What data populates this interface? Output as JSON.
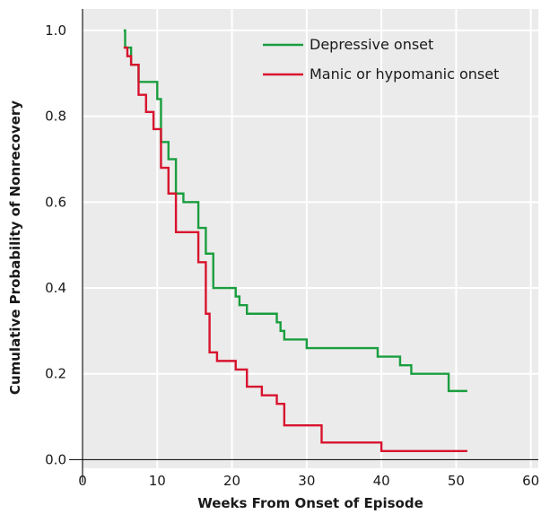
{
  "chart_data": {
    "type": "line",
    "title": "",
    "xlabel": "Weeks From Onset of Episode",
    "ylabel": "Cumulative Probability of Nonrecovery",
    "xlim": [
      0,
      61
    ],
    "ylim": [
      -0.02,
      1.05
    ],
    "x_ticks": [
      0,
      10,
      20,
      30,
      40,
      50,
      60
    ],
    "x_tick_labels": [
      "0",
      "10",
      "20",
      "30",
      "40",
      "50",
      "60"
    ],
    "y_ticks": [
      0.0,
      0.2,
      0.4,
      0.6,
      0.8,
      1.0
    ],
    "y_tick_labels": [
      "0.0",
      "0.2",
      "0.4",
      "0.6",
      "0.8",
      "1.0"
    ],
    "grid": true,
    "background": "#ebebeb",
    "grid_color": "#ffffff",
    "legend_position": "top-right",
    "step": true,
    "series": [
      {
        "name": "Depressive onset",
        "color": "#1a9e3f",
        "x": [
          5.5,
          5.7,
          6.5,
          7.5,
          10,
          10.5,
          11.5,
          12.5,
          13.5,
          15.5,
          16.5,
          17.5,
          20.5,
          21,
          22,
          24,
          26,
          26.5,
          27,
          30,
          39.5,
          42.5,
          44,
          49,
          51.5
        ],
        "y": [
          1.0,
          0.96,
          0.92,
          0.88,
          0.84,
          0.74,
          0.7,
          0.62,
          0.6,
          0.54,
          0.48,
          0.4,
          0.38,
          0.36,
          0.34,
          0.34,
          0.32,
          0.3,
          0.28,
          0.26,
          0.24,
          0.22,
          0.2,
          0.16,
          0.16
        ]
      },
      {
        "name": "Manic or hypomanic onset",
        "color": "#d8132e",
        "x": [
          5.5,
          6,
          6.5,
          7.5,
          8.5,
          9.5,
          10.5,
          11.5,
          12.5,
          15.5,
          16.5,
          17,
          18,
          20.5,
          22,
          24,
          26,
          27,
          32,
          40,
          51.5
        ],
        "y": [
          0.96,
          0.94,
          0.92,
          0.85,
          0.81,
          0.77,
          0.68,
          0.62,
          0.53,
          0.46,
          0.34,
          0.25,
          0.23,
          0.21,
          0.17,
          0.15,
          0.13,
          0.08,
          0.04,
          0.02,
          0.02
        ]
      }
    ]
  }
}
